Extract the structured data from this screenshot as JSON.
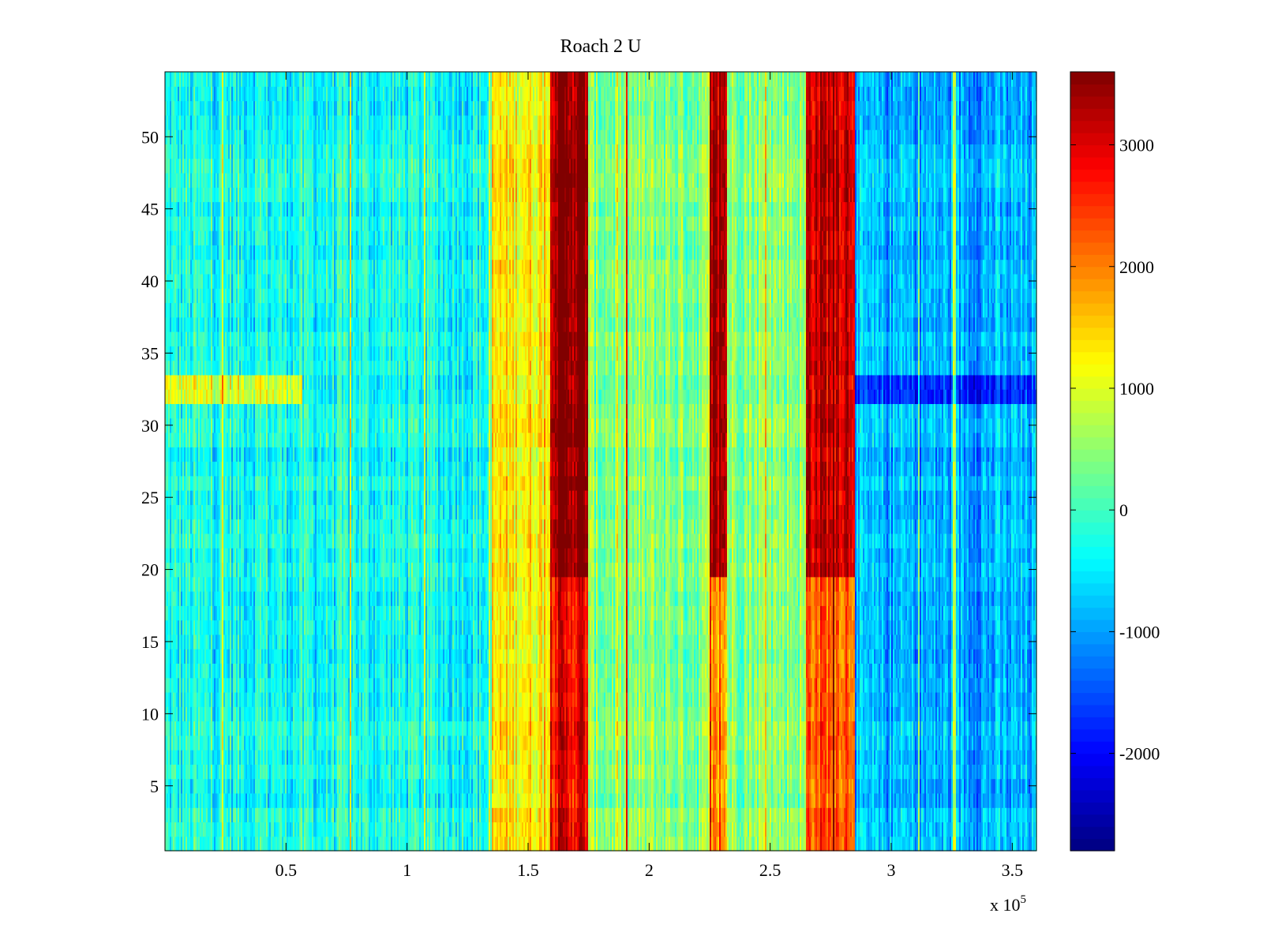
{
  "chart_data": {
    "type": "heatmap",
    "title": "Roach 2 U",
    "xlabel": "",
    "ylabel": "",
    "x_multiplier_label": {
      "base": "x 10",
      "exponent": "5"
    },
    "xlim": [
      0,
      360000
    ],
    "ylim": [
      0.5,
      54.5
    ],
    "rows": 54,
    "x_ticks": [
      {
        "value": 50000,
        "label": "0.5"
      },
      {
        "value": 100000,
        "label": "1"
      },
      {
        "value": 150000,
        "label": "1.5"
      },
      {
        "value": 200000,
        "label": "2"
      },
      {
        "value": 250000,
        "label": "2.5"
      },
      {
        "value": 300000,
        "label": "3"
      },
      {
        "value": 350000,
        "label": "3.5"
      }
    ],
    "y_ticks": [
      {
        "value": 5,
        "label": "5"
      },
      {
        "value": 10,
        "label": "10"
      },
      {
        "value": 15,
        "label": "15"
      },
      {
        "value": 20,
        "label": "20"
      },
      {
        "value": 25,
        "label": "25"
      },
      {
        "value": 30,
        "label": "30"
      },
      {
        "value": 35,
        "label": "35"
      },
      {
        "value": 40,
        "label": "40"
      },
      {
        "value": 45,
        "label": "45"
      },
      {
        "value": 50,
        "label": "50"
      }
    ],
    "colorbar": {
      "colormap": "jet",
      "clim": [
        -2800,
        3600
      ],
      "ticks": [
        {
          "value": 3000,
          "label": "3000"
        },
        {
          "value": 2000,
          "label": "2000"
        },
        {
          "value": 1000,
          "label": "1000"
        },
        {
          "value": 0,
          "label": "0"
        },
        {
          "value": -1000,
          "label": "-1000"
        },
        {
          "value": -2000,
          "label": "-2000"
        }
      ]
    },
    "background_level": -300,
    "noise_amplitude": 600,
    "features": [
      {
        "x_start": 0,
        "x_end": 135000,
        "y_start": 0.5,
        "y_end": 54.5,
        "level": -300
      },
      {
        "x_start": 135000,
        "x_end": 160000,
        "y_start": 0.5,
        "y_end": 54.5,
        "level": 1300
      },
      {
        "x_start": 160000,
        "x_end": 175000,
        "y_start": 19.5,
        "y_end": 54.5,
        "level": 3600
      },
      {
        "x_start": 160000,
        "x_end": 175000,
        "y_start": 0.5,
        "y_end": 19.5,
        "level": 2900
      },
      {
        "x_start": 175000,
        "x_end": 225000,
        "y_start": 0.5,
        "y_end": 54.5,
        "level": 400
      },
      {
        "x_start": 225000,
        "x_end": 232000,
        "y_start": 19.5,
        "y_end": 54.5,
        "level": 3300
      },
      {
        "x_start": 225000,
        "x_end": 232000,
        "y_start": 0.5,
        "y_end": 19.5,
        "level": 1800
      },
      {
        "x_start": 232000,
        "x_end": 265000,
        "y_start": 0.5,
        "y_end": 54.5,
        "level": 500
      },
      {
        "x_start": 265000,
        "x_end": 285000,
        "y_start": 19.5,
        "y_end": 54.5,
        "level": 3200
      },
      {
        "x_start": 265000,
        "x_end": 285000,
        "y_start": 0.5,
        "y_end": 19.5,
        "level": 2300
      },
      {
        "x_start": 285000,
        "x_end": 360000,
        "y_start": 0.5,
        "y_end": 54.5,
        "level": -900
      },
      {
        "x_start": 0,
        "x_end": 57000,
        "y_start": 31.5,
        "y_end": 33.5,
        "level": 1100
      },
      {
        "x_start": 285000,
        "x_end": 360000,
        "y_start": 31.5,
        "y_end": 33.5,
        "level": -1700
      }
    ]
  }
}
